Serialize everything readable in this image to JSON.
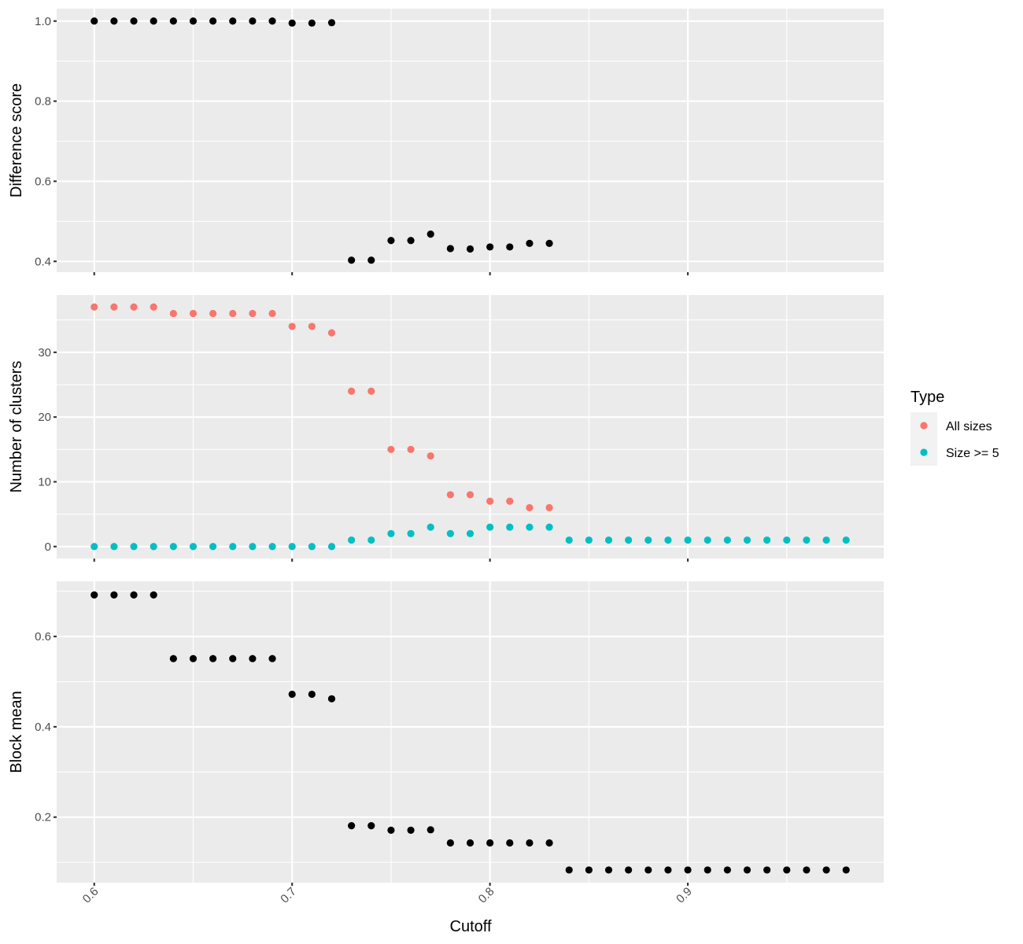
{
  "chart_data": {
    "type": "scatter",
    "xlabel": "Cutoff",
    "x_ticks": [
      "0.6",
      "0.7",
      "0.8",
      "0.9"
    ],
    "xlim": [
      0.581,
      0.999
    ],
    "legend": {
      "title": "Type",
      "placement": "right",
      "items": [
        {
          "label": "All sizes",
          "color": "#F8766D"
        },
        {
          "label": "Size >= 5",
          "color": "#00BFC4"
        }
      ]
    },
    "panels": [
      {
        "ylabel": "Difference score",
        "ylim": [
          0.373,
          1.031
        ],
        "y_ticks": [
          0.4,
          0.6,
          0.8,
          1.0
        ],
        "y_tick_labels": [
          "0.4",
          "0.6",
          "0.8",
          "1.0"
        ],
        "series": [
          {
            "color": "#000000",
            "x": [
              0.6,
              0.61,
              0.62,
              0.63,
              0.64,
              0.65,
              0.66,
              0.67,
              0.68,
              0.69,
              0.7,
              0.71,
              0.72,
              0.73,
              0.74,
              0.75,
              0.76,
              0.77,
              0.78,
              0.79,
              0.8,
              0.81,
              0.82,
              0.83
            ],
            "y": [
              1.0,
              1.0,
              1.0,
              1.0,
              1.0,
              1.0,
              1.0,
              1.0,
              1.0,
              1.0,
              0.995,
              0.995,
              0.996,
              0.403,
              0.403,
              0.452,
              0.452,
              0.468,
              0.432,
              0.431,
              0.436,
              0.436,
              0.445,
              0.445
            ]
          }
        ]
      },
      {
        "ylabel": "Number of clusters",
        "ylim": [
          -1.85,
          38.85
        ],
        "y_ticks": [
          0,
          10,
          20,
          30
        ],
        "y_tick_labels": [
          "0",
          "10",
          "20",
          "30"
        ],
        "series": [
          {
            "name": "All sizes",
            "color": "#F8766D",
            "x": [
              0.6,
              0.61,
              0.62,
              0.63,
              0.64,
              0.65,
              0.66,
              0.67,
              0.68,
              0.69,
              0.7,
              0.71,
              0.72,
              0.73,
              0.74,
              0.75,
              0.76,
              0.77,
              0.78,
              0.79,
              0.8,
              0.81,
              0.82,
              0.83
            ],
            "y": [
              37,
              37,
              37,
              37,
              36,
              36,
              36,
              36,
              36,
              36,
              34,
              34,
              33,
              24,
              24,
              15,
              15,
              14,
              8,
              8,
              7,
              7,
              6,
              6
            ]
          },
          {
            "name": "Size >= 5",
            "color": "#00BFC4",
            "x": [
              0.6,
              0.61,
              0.62,
              0.63,
              0.64,
              0.65,
              0.66,
              0.67,
              0.68,
              0.69,
              0.7,
              0.71,
              0.72,
              0.73,
              0.74,
              0.75,
              0.76,
              0.77,
              0.78,
              0.79,
              0.8,
              0.81,
              0.82,
              0.83,
              0.84,
              0.85,
              0.86,
              0.87,
              0.88,
              0.89,
              0.9,
              0.91,
              0.92,
              0.93,
              0.94,
              0.95,
              0.96,
              0.97,
              0.98
            ],
            "y": [
              0,
              0,
              0,
              0,
              0,
              0,
              0,
              0,
              0,
              0,
              0,
              0,
              0,
              1,
              1,
              2,
              2,
              3,
              2,
              2,
              3,
              3,
              3,
              3,
              1,
              1,
              1,
              1,
              1,
              1,
              1,
              1,
              1,
              1,
              1,
              1,
              1,
              1,
              1
            ]
          }
        ]
      },
      {
        "ylabel": "Block mean",
        "ylim": [
          0.055,
          0.722
        ],
        "y_ticks": [
          0.2,
          0.4,
          0.6
        ],
        "y_tick_labels": [
          "0.2",
          "0.4",
          "0.6"
        ],
        "series": [
          {
            "color": "#000000",
            "x": [
              0.6,
              0.61,
              0.62,
              0.63,
              0.64,
              0.65,
              0.66,
              0.67,
              0.68,
              0.69,
              0.7,
              0.71,
              0.72,
              0.73,
              0.74,
              0.75,
              0.76,
              0.77,
              0.78,
              0.79,
              0.8,
              0.81,
              0.82,
              0.83,
              0.84,
              0.85,
              0.86,
              0.87,
              0.88,
              0.89,
              0.9,
              0.91,
              0.92,
              0.93,
              0.94,
              0.95,
              0.96,
              0.97,
              0.98
            ],
            "y": [
              0.692,
              0.692,
              0.692,
              0.692,
              0.551,
              0.551,
              0.551,
              0.551,
              0.551,
              0.551,
              0.472,
              0.472,
              0.462,
              0.181,
              0.181,
              0.171,
              0.171,
              0.172,
              0.143,
              0.143,
              0.143,
              0.143,
              0.143,
              0.143,
              0.083,
              0.083,
              0.083,
              0.083,
              0.083,
              0.083,
              0.083,
              0.083,
              0.083,
              0.083,
              0.083,
              0.083,
              0.083,
              0.083,
              0.083
            ]
          }
        ]
      }
    ]
  }
}
